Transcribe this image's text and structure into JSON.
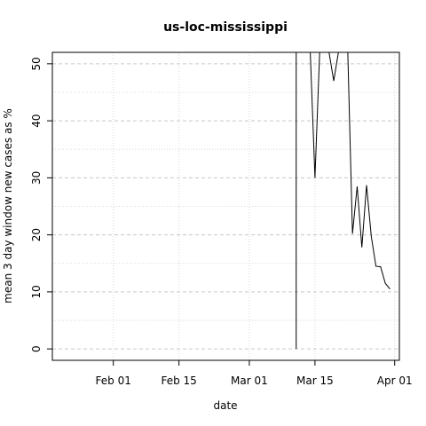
{
  "chart_data": {
    "type": "line",
    "title": "us-loc-mississippi",
    "xlabel": "date",
    "ylabel": "mean  3  day window new cases as %",
    "xlim": [
      "2020-01-19",
      "2020-04-02"
    ],
    "ylim": [
      -2,
      52
    ],
    "x_ticks": [
      {
        "date": "2020-02-01",
        "label": "Feb 01"
      },
      {
        "date": "2020-02-15",
        "label": "Feb 15"
      },
      {
        "date": "2020-03-01",
        "label": "Mar 01"
      },
      {
        "date": "2020-03-15",
        "label": "Mar 15"
      },
      {
        "date": "2020-04-01",
        "label": "Apr 01"
      }
    ],
    "y_ticks": [
      0,
      10,
      20,
      30,
      40,
      50
    ],
    "y_minor_grid": [
      5,
      15,
      25,
      35,
      45
    ],
    "grid": true,
    "series": [
      {
        "color": "#000000",
        "points": [
          {
            "x": "2020-03-11",
            "y": 0
          },
          {
            "x": "2020-03-11",
            "y": 52
          },
          {
            "x": "2020-03-14",
            "y": 52
          },
          {
            "x": "2020-03-15",
            "y": 30
          },
          {
            "x": "2020-03-16",
            "y": 52
          },
          {
            "x": "2020-03-18",
            "y": 52
          },
          {
            "x": "2020-03-19",
            "y": 47
          },
          {
            "x": "2020-03-20",
            "y": 52
          },
          {
            "x": "2020-03-22",
            "y": 52
          },
          {
            "x": "2020-03-23",
            "y": 20.2
          },
          {
            "x": "2020-03-24",
            "y": 28.5
          },
          {
            "x": "2020-03-25",
            "y": 17.8
          },
          {
            "x": "2020-03-26",
            "y": 28.7
          },
          {
            "x": "2020-03-27",
            "y": 19.8
          },
          {
            "x": "2020-03-28",
            "y": 14.5
          },
          {
            "x": "2020-03-29",
            "y": 14.4
          },
          {
            "x": "2020-03-30",
            "y": 11.5
          },
          {
            "x": "2020-03-31",
            "y": 10.5
          }
        ]
      }
    ]
  }
}
